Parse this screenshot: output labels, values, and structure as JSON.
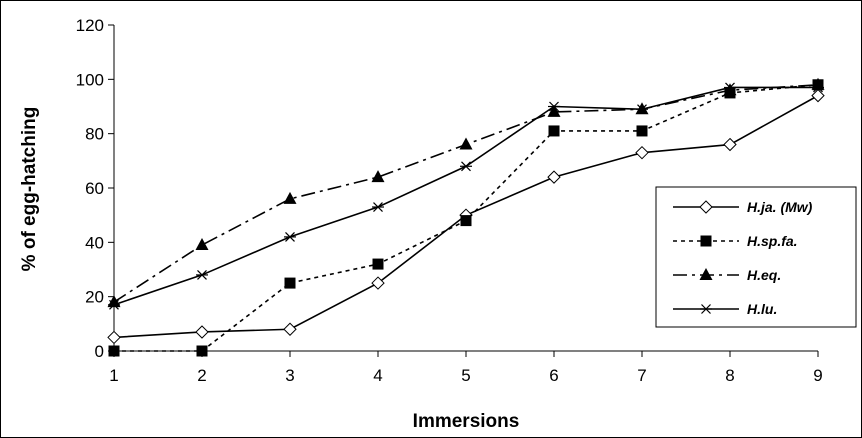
{
  "chart_data": {
    "type": "line",
    "title": "",
    "xlabel": "Immersions",
    "ylabel": "% of egg-hatching",
    "x": [
      1,
      2,
      3,
      4,
      5,
      6,
      7,
      8,
      9
    ],
    "xticks": [
      "1",
      "2",
      "3",
      "4",
      "5",
      "6",
      "7",
      "8",
      "9"
    ],
    "ylim": [
      0,
      120
    ],
    "yticks": [
      "0",
      "20",
      "40",
      "60",
      "80",
      "100",
      "120"
    ],
    "grid": false,
    "legend_position": "right",
    "series": [
      {
        "name": "H.ja. (Mw)",
        "values": [
          5,
          7,
          8,
          25,
          50,
          64,
          73,
          76,
          94
        ],
        "marker": "diamond-open",
        "line": "solid",
        "color": "#000000"
      },
      {
        "name": "H.sp.fa.",
        "values": [
          0,
          0,
          25,
          32,
          48,
          81,
          81,
          95,
          98
        ],
        "marker": "square-filled",
        "line": "dotted",
        "color": "#000000"
      },
      {
        "name": "H.eq.",
        "values": [
          18,
          39,
          56,
          64,
          76,
          88,
          89,
          96,
          98
        ],
        "marker": "triangle-filled",
        "line": "dashdot",
        "color": "#000000"
      },
      {
        "name": "H.lu.",
        "values": [
          17,
          28,
          42,
          53,
          68,
          90,
          89,
          97,
          97
        ],
        "marker": "asterisk",
        "line": "solid",
        "color": "#000000"
      }
    ]
  }
}
